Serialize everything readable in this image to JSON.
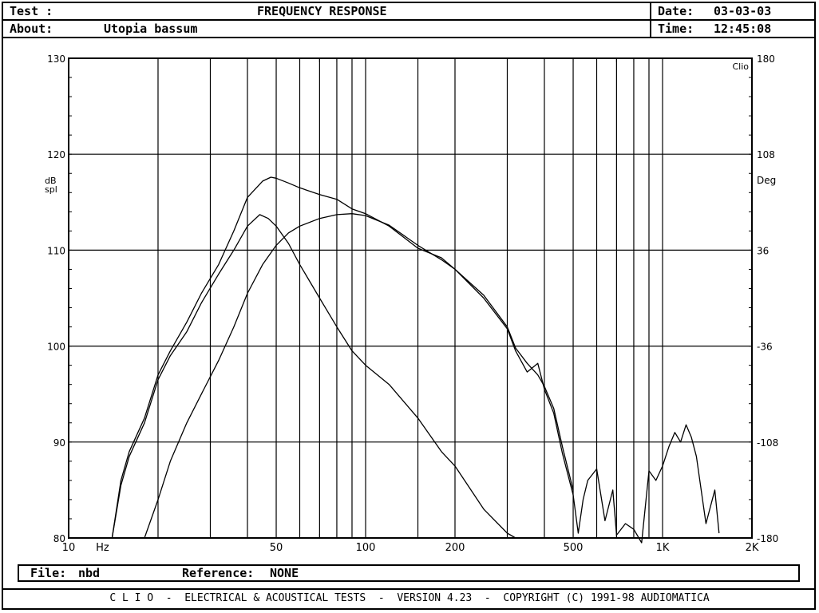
{
  "header": {
    "test_label": "Test :",
    "title": "FREQUENCY RESPONSE",
    "about_label": "About:",
    "about_value": "Utopia bassum",
    "date_label": "Date:",
    "date_value": "03-03-03",
    "time_label": "Time:",
    "time_value": "12:45:08"
  },
  "file_bar": {
    "file_label": "File:",
    "file_value": "nbd",
    "reference_label": "Reference:",
    "reference_value": "NONE"
  },
  "footer": {
    "text": "C L I O  -  ELECTRICAL & ACOUSTICAL TESTS  -  VERSION 4.23  -  COPYRIGHT (C) 1991-98 AUDIOMATICA"
  },
  "chart_data": {
    "type": "line",
    "title": "FREQUENCY RESPONSE",
    "xlabel": "Hz",
    "ylabel": "dB spl",
    "y2label": "Deg",
    "brand": "Clio",
    "xscale": "log",
    "xlim": [
      10,
      2000
    ],
    "ylim": [
      80,
      130
    ],
    "y2lim": [
      -180,
      180
    ],
    "x_ticks": [
      {
        "value": 10,
        "label": "10"
      },
      {
        "value": 50,
        "label": "50"
      },
      {
        "value": 100,
        "label": "100"
      },
      {
        "value": 200,
        "label": "200"
      },
      {
        "value": 500,
        "label": "500"
      },
      {
        "value": 1000,
        "label": "1K"
      },
      {
        "value": 2000,
        "label": "2K"
      }
    ],
    "x_gridlines": [
      20,
      30,
      40,
      50,
      60,
      70,
      80,
      90,
      100,
      150,
      200,
      300,
      400,
      500,
      600,
      700,
      800,
      900,
      1000
    ],
    "y_ticks": [
      {
        "value": 80,
        "label": "80"
      },
      {
        "value": 90,
        "label": "90"
      },
      {
        "value": 100,
        "label": "100"
      },
      {
        "value": 110,
        "label": "110"
      },
      {
        "value": 120,
        "label": "120"
      },
      {
        "value": 130,
        "label": "130"
      }
    ],
    "y2_ticks": [
      {
        "value": -180,
        "label": "-180"
      },
      {
        "value": -108,
        "label": "-108"
      },
      {
        "value": -36,
        "label": "-36"
      },
      {
        "value": 36,
        "label": "36"
      },
      {
        "value": 108,
        "label": "108"
      },
      {
        "value": 180,
        "label": "180"
      }
    ],
    "grid": true,
    "series": [
      {
        "x": [
          14,
          15,
          16,
          18,
          20,
          22,
          25,
          28,
          32,
          36,
          40,
          45,
          48,
          50,
          55,
          60,
          70,
          80,
          90,
          100,
          120,
          150,
          180,
          200,
          250,
          300,
          320,
          350,
          380,
          400,
          430,
          460,
          500,
          520,
          540,
          560,
          600,
          640,
          680,
          700,
          750,
          800,
          850,
          900,
          950,
          1000,
          1050,
          1100,
          1150,
          1200,
          1250,
          1300,
          1400,
          1500,
          1550
        ],
        "y": [
          80,
          86,
          89,
          92.5,
          97,
          99.5,
          102.5,
          105.5,
          108.5,
          112,
          115.5,
          117.2,
          117.6,
          117.5,
          117,
          116.5,
          115.8,
          115.3,
          114.3,
          113.8,
          112.5,
          110.2,
          109.2,
          108,
          105,
          101.8,
          99.5,
          97.3,
          98.2,
          95.5,
          93,
          88.8,
          84.5,
          80.5,
          84,
          86,
          87.2,
          81.8,
          85,
          80.3,
          81.5,
          80.9,
          79.5,
          87,
          86,
          87.5,
          89.5,
          91,
          90,
          91.8,
          90.5,
          88.5,
          81.5,
          85,
          80.5
        ]
      },
      {
        "x": [
          14,
          15,
          16,
          18,
          20,
          22,
          25,
          28,
          32,
          36,
          40,
          44,
          47,
          50,
          55,
          60,
          70,
          80,
          90,
          100,
          120,
          150,
          180,
          200,
          250,
          300,
          320,
          350,
          380,
          400,
          430,
          460,
          500,
          520,
          540,
          560,
          600,
          640,
          680,
          700,
          750,
          800
        ],
        "y": [
          80,
          85.5,
          88.5,
          92,
          96.5,
          99,
          101.5,
          104.5,
          107.5,
          110,
          112.5,
          113.7,
          113.3,
          112.5,
          110.7,
          108.5,
          105,
          102,
          99.5,
          98,
          96,
          92.5,
          89,
          87.5,
          83,
          80.5,
          80,
          80,
          80,
          80,
          80,
          80,
          80,
          80,
          80,
          80,
          80,
          80,
          80,
          80,
          80,
          80
        ]
      },
      {
        "x": [
          18,
          20,
          22,
          25,
          28,
          32,
          36,
          40,
          45,
          50,
          55,
          60,
          70,
          80,
          90,
          100,
          120,
          150,
          180,
          200,
          250,
          300,
          320,
          350,
          380,
          400,
          430,
          460,
          500
        ],
        "y": [
          80,
          84,
          88,
          92,
          95,
          98.5,
          102,
          105.5,
          108.5,
          110.5,
          111.8,
          112.5,
          113.3,
          113.7,
          113.8,
          113.6,
          112.6,
          110.5,
          109,
          108,
          105.3,
          102,
          99.8,
          98.2,
          97,
          95.8,
          93.5,
          89.5,
          85
        ]
      }
    ]
  }
}
